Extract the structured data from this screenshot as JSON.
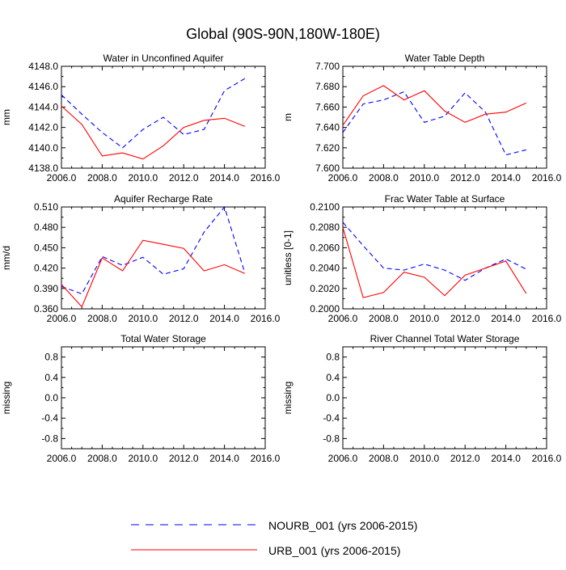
{
  "figure": {
    "title": "Global (90S-90N,180W-180E)",
    "colors": {
      "nourb": "#0000ff",
      "urb": "#ff0000",
      "axis": "#000000"
    }
  },
  "legend": {
    "items": [
      {
        "label": "NOURB_001 (yrs 2006-2015)",
        "style": "dashed",
        "color": "#0000ff"
      },
      {
        "label": "URB_001 (yrs 2006-2015)",
        "style": "solid",
        "color": "#ff0000"
      }
    ]
  },
  "chart_data": [
    {
      "type": "line",
      "title": "Water in Unconfined Aquifer",
      "ylabel": "mm",
      "xlim": [
        2006,
        2016
      ],
      "ylim": [
        4138,
        4148
      ],
      "x_ticks": [
        "2006.0",
        "2008.0",
        "2010.0",
        "2012.0",
        "2014.0",
        "2016.0"
      ],
      "y_ticks": [
        "4138.0",
        "4140.0",
        "4142.0",
        "4144.0",
        "4146.0",
        "4148.0"
      ],
      "x": [
        2006,
        2007,
        2008,
        2009,
        2010,
        2011,
        2012,
        2013,
        2014,
        2015
      ],
      "series": [
        {
          "name": "NOURB_001",
          "values": [
            4145.2,
            4143.3,
            4141.5,
            4140.0,
            4141.8,
            4143.0,
            4141.3,
            4141.8,
            4145.6,
            4146.8
          ]
        },
        {
          "name": "URB_001",
          "values": [
            4144.1,
            4142.3,
            4139.2,
            4139.5,
            4138.9,
            4140.2,
            4142.0,
            4142.7,
            4142.9,
            4142.1
          ]
        }
      ]
    },
    {
      "type": "line",
      "title": "Water Table Depth",
      "ylabel": "m",
      "xlim": [
        2006,
        2016
      ],
      "ylim": [
        7.6,
        7.7
      ],
      "x_ticks": [
        "2006.0",
        "2008.0",
        "2010.0",
        "2012.0",
        "2014.0",
        "2016.0"
      ],
      "y_ticks": [
        "7.600",
        "7.620",
        "7.640",
        "7.660",
        "7.680",
        "7.700"
      ],
      "x": [
        2006,
        2007,
        2008,
        2009,
        2010,
        2011,
        2012,
        2013,
        2014,
        2015
      ],
      "series": [
        {
          "name": "NOURB_001",
          "values": [
            7.635,
            7.663,
            7.667,
            7.675,
            7.645,
            7.651,
            7.674,
            7.655,
            7.613,
            7.618
          ]
        },
        {
          "name": "URB_001",
          "values": [
            7.642,
            7.671,
            7.681,
            7.667,
            7.676,
            7.656,
            7.645,
            7.653,
            7.655,
            7.664
          ]
        }
      ]
    },
    {
      "type": "line",
      "title": "Aquifer Recharge Rate",
      "ylabel": "mm/d",
      "xlim": [
        2006,
        2016
      ],
      "ylim": [
        0.36,
        0.51
      ],
      "x_ticks": [
        "2006.0",
        "2008.0",
        "2010.0",
        "2012.0",
        "2014.0",
        "2016.0"
      ],
      "y_ticks": [
        "0.360",
        "0.390",
        "0.420",
        "0.450",
        "0.480",
        "0.510"
      ],
      "x": [
        2006,
        2007,
        2008,
        2009,
        2010,
        2011,
        2012,
        2013,
        2014,
        2015
      ],
      "series": [
        {
          "name": "NOURB_001",
          "values": [
            0.393,
            0.382,
            0.437,
            0.424,
            0.436,
            0.411,
            0.419,
            0.473,
            0.51,
            0.413
          ]
        },
        {
          "name": "URB_001",
          "values": [
            0.396,
            0.363,
            0.435,
            0.416,
            0.461,
            0.455,
            0.449,
            0.416,
            0.425,
            0.412
          ]
        }
      ]
    },
    {
      "type": "line",
      "title": "Frac Water Table at Surface",
      "ylabel": "unitless [0-1]",
      "xlim": [
        2006,
        2016
      ],
      "ylim": [
        0.2,
        0.21
      ],
      "x_ticks": [
        "2006.0",
        "2008.0",
        "2010.0",
        "2012.0",
        "2014.0",
        "2016.0"
      ],
      "y_ticks": [
        "0.2000",
        "0.2020",
        "0.2040",
        "0.2060",
        "0.2080",
        "0.2100"
      ],
      "x": [
        2006,
        2007,
        2008,
        2009,
        2010,
        2011,
        2012,
        2013,
        2014,
        2015
      ],
      "series": [
        {
          "name": "NOURB_001",
          "values": [
            0.2085,
            0.2062,
            0.204,
            0.2038,
            0.2044,
            0.2038,
            0.2028,
            0.204,
            0.2049,
            0.2039
          ]
        },
        {
          "name": "URB_001",
          "values": [
            0.208,
            0.2011,
            0.2016,
            0.2036,
            0.2031,
            0.2013,
            0.2033,
            0.204,
            0.2047,
            0.2015
          ]
        }
      ]
    },
    {
      "type": "line",
      "title": "Total Water Storage",
      "ylabel": "missing",
      "xlim": [
        2006,
        2016
      ],
      "ylim": [
        -1,
        1
      ],
      "x_ticks": [
        "2006.0",
        "2008.0",
        "2010.0",
        "2012.0",
        "2014.0",
        "2016.0"
      ],
      "y_ticks": [
        "-0.8",
        "-0.4",
        "0.0",
        "0.4",
        "0.8"
      ],
      "x": [],
      "series": []
    },
    {
      "type": "line",
      "title": "River Channel Total Water Storage",
      "ylabel": "missing",
      "xlim": [
        2006,
        2016
      ],
      "ylim": [
        -1,
        1
      ],
      "x_ticks": [
        "2006.0",
        "2008.0",
        "2010.0",
        "2012.0",
        "2014.0",
        "2016.0"
      ],
      "y_ticks": [
        "-0.8",
        "-0.4",
        "0.0",
        "0.4",
        "0.8"
      ],
      "x": [],
      "series": []
    }
  ]
}
